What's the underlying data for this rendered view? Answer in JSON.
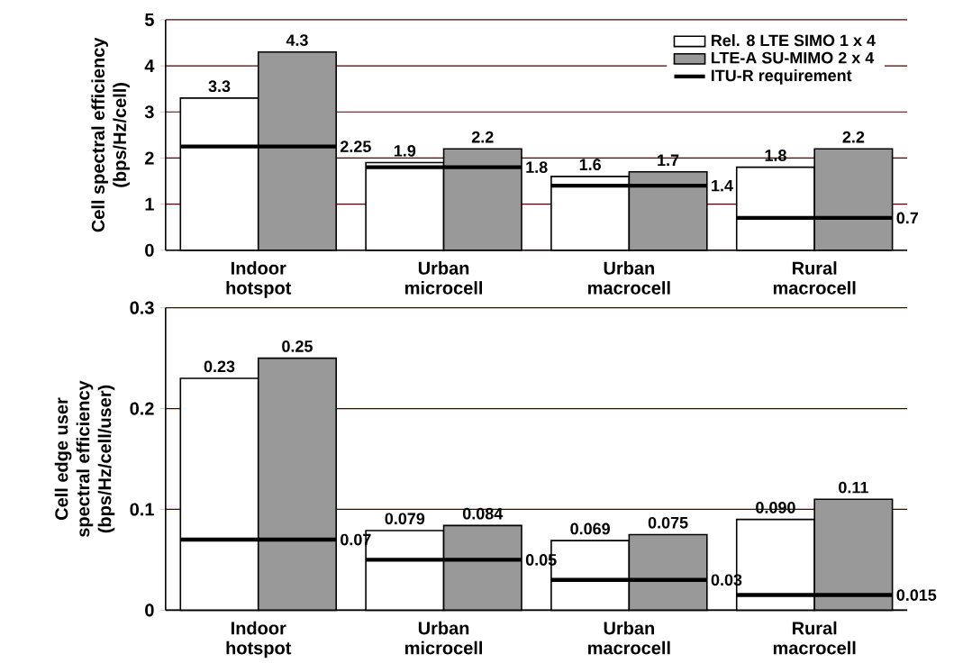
{
  "chart_data": [
    {
      "type": "bar",
      "ylabel": "Cell spectral efficiency\n(bps/Hz/cell)",
      "categories": [
        "Indoor hotspot",
        "Urban microcell",
        "Urban macrocell",
        "Rural macrocell"
      ],
      "series": [
        {
          "name": "Rel. 8 LTE SIMO 1 x 4",
          "color": "#ffffff",
          "values": [
            3.3,
            1.9,
            1.6,
            1.8
          ],
          "value_labels": [
            "3.3",
            "1.9",
            "1.6",
            "1.8"
          ]
        },
        {
          "name": "LTE-A SU-MIMO 2 x 4",
          "color": "#999999",
          "values": [
            4.3,
            2.2,
            1.7,
            2.2
          ],
          "value_labels": [
            "4.3",
            "2.2",
            "1.7",
            "2.2"
          ]
        }
      ],
      "ref_lines": [
        {
          "axis": "y",
          "value": 2.25,
          "label": "2.25",
          "color": "#000000"
        },
        {
          "axis": "y",
          "value": 1.8,
          "label": "1.8",
          "color": "#000000"
        },
        {
          "axis": "y",
          "value": 1.4,
          "label": "1.4",
          "color": "#000000"
        },
        {
          "axis": "y",
          "value": 0.7,
          "label": "0.7",
          "color": "#000000"
        }
      ],
      "annotations": [
        "ITU-R requirement"
      ],
      "ylim": [
        0,
        5
      ],
      "yticks": [
        0,
        1,
        2,
        3,
        4,
        5
      ],
      "grid": "y",
      "legend": "top right"
    },
    {
      "type": "bar",
      "ylabel": "Cell edge user\nspectral efficiency\n(bps/Hz/cell/user)",
      "categories": [
        "Indoor hotspot",
        "Urban microcell",
        "Urban macrocell",
        "Rural macrocell"
      ],
      "series": [
        {
          "color": "#ffffff",
          "values": [
            0.23,
            0.079,
            0.069,
            0.09
          ],
          "value_labels": [
            "0.23",
            "0.079",
            "0.069",
            "0.090"
          ]
        },
        {
          "color": "#999999",
          "values": [
            0.25,
            0.084,
            0.075,
            0.11
          ],
          "value_labels": [
            "0.25",
            "0.084",
            "0.075",
            "0.11"
          ]
        }
      ],
      "ref_lines": [
        {
          "axis": "y",
          "value": 0.07,
          "label": "0.07",
          "color": "#000000"
        },
        {
          "axis": "y",
          "value": 0.05,
          "label": "0.05",
          "color": "#000000"
        },
        {
          "axis": "y",
          "value": 0.03,
          "label": "0.03",
          "color": "#000000"
        },
        {
          "axis": "y",
          "value": 0.015,
          "label": "0.015",
          "color": "#000000"
        }
      ],
      "ylim": [
        0,
        0.3
      ],
      "yticks": [
        0,
        0.1,
        0.2,
        0.3
      ],
      "grid": "y",
      "legend": false
    }
  ]
}
